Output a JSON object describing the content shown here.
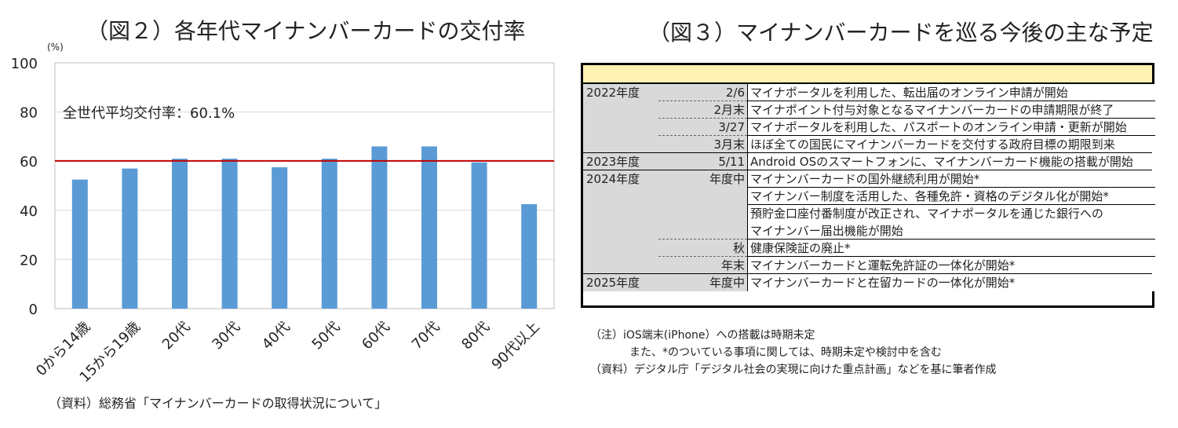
{
  "left": {
    "title": "（図２）各年代マイナンバーカードの交付率",
    "unit_label": "(%)",
    "source": "（資料）総務省「マイナンバーカードの取得状況について」",
    "average_label": "全世代平均交付率：60.1%",
    "average_value": 60.1,
    "colors": {
      "bar": "#5b9bd5",
      "average_line": "#c00000",
      "grid": "#d9d9d9"
    }
  },
  "chart_data": {
    "type": "bar",
    "categories": [
      "0から14歳",
      "15から19歳",
      "20代",
      "30代",
      "40代",
      "50代",
      "60代",
      "70代",
      "80代",
      "90代以上"
    ],
    "values": [
      52.5,
      57,
      61,
      61,
      57.5,
      61,
      66,
      66,
      59.5,
      42.5
    ],
    "title": "（図２）各年代マイナンバーカードの交付率",
    "ylabel": "(%)",
    "ylim": [
      0,
      100
    ],
    "yticks": [
      0,
      20,
      40,
      60,
      80,
      100
    ],
    "grid": true,
    "reference_line": {
      "value": 60.1,
      "label": "全世代平均交付率：60.1%"
    }
  },
  "right": {
    "title": "（図３）マイナンバーカードを巡る今後の主な予定",
    "header_color": "#fff2b3",
    "rows": [
      {
        "year": "2022年度",
        "date": "2/6",
        "event": [
          "マイナポータルを利用した、転出届のオンライン申請が開始"
        ]
      },
      {
        "year": "",
        "date": "2月末",
        "event": [
          "マイナポイント付与対象となるマイナンバーカードの申請期限が終了"
        ]
      },
      {
        "year": "",
        "date": "3/27",
        "event": [
          "マイナポータルを利用した、パスポートのオンライン申請・更新が開始"
        ]
      },
      {
        "year": "",
        "date": "3月末",
        "event": [
          "ほぼ全ての国民にマイナンバーカードを交付する政府目標の期限到来"
        ]
      },
      {
        "year": "2023年度",
        "date": "5/11",
        "event": [
          "Android OSのスマートフォンに、マイナンバーカード機能の搭載が開始"
        ]
      },
      {
        "year": "2024年度",
        "date": "年度中",
        "event": [
          "マイナンバーカードの国外継続利用が開始*"
        ]
      },
      {
        "year": "",
        "date": "",
        "event": [
          "マイナンバー制度を活用した、各種免許・資格のデジタル化が開始*"
        ]
      },
      {
        "year": "",
        "date": "",
        "event": [
          "預貯金口座付番制度が改正され、マイナポータルを通じた銀行への",
          "マイナンバー届出機能が開始"
        ]
      },
      {
        "year": "",
        "date": "秋",
        "event": [
          "健康保険証の廃止*"
        ]
      },
      {
        "year": "",
        "date": "年末",
        "event": [
          "マイナンバーカードと運転免許証の一体化が開始*"
        ]
      },
      {
        "year": "2025年度",
        "date": "年度中",
        "event": [
          "マイナンバーカードと在留カードの一体化が開始*"
        ]
      }
    ],
    "notes": {
      "line1": "（注）iOS端末(iPhone）への搭載は時期未定",
      "line2": "また、*のついている事項に関しては、時期未定や検討中を含む",
      "line3": "（資料）デジタル庁「デジタル社会の実現に向けた重点計画」などを基に筆者作成"
    }
  }
}
